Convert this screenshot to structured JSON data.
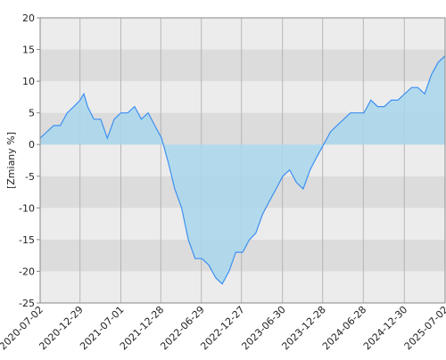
{
  "chart_data": {
    "type": "area",
    "y_label": "[Zmiany %]",
    "x": [
      "2020-07-02",
      "2020-08-01",
      "2020-09-01",
      "2020-10-01",
      "2020-11-01",
      "2020-12-01",
      "2020-12-29",
      "2021-01-15",
      "2021-02-01",
      "2021-03-01",
      "2021-04-01",
      "2021-05-01",
      "2021-06-01",
      "2021-07-01",
      "2021-08-01",
      "2021-09-01",
      "2021-10-01",
      "2021-11-01",
      "2021-12-01",
      "2022-01-01",
      "2022-02-01",
      "2022-03-01",
      "2022-04-01",
      "2022-05-01",
      "2022-06-01",
      "2022-07-01",
      "2022-08-01",
      "2022-09-01",
      "2022-10-01",
      "2022-11-01",
      "2022-12-01",
      "2023-01-01",
      "2023-02-01",
      "2023-03-01",
      "2023-04-01",
      "2023-05-01",
      "2023-06-01",
      "2023-07-01",
      "2023-08-01",
      "2023-09-01",
      "2023-10-01",
      "2023-11-01",
      "2023-12-01",
      "2024-01-01",
      "2024-02-01",
      "2024-03-01",
      "2024-04-01",
      "2024-05-01",
      "2024-06-01",
      "2024-07-01",
      "2024-08-01",
      "2024-09-01",
      "2024-10-01",
      "2024-11-01",
      "2024-12-01",
      "2025-01-01",
      "2025-02-01",
      "2025-03-01",
      "2025-04-01",
      "2025-05-01",
      "2025-06-01",
      "2025-07-02"
    ],
    "values": [
      1,
      2,
      3,
      3,
      5,
      6,
      7,
      8,
      6,
      4,
      4,
      1,
      4,
      5,
      5,
      6,
      4,
      5,
      3,
      1,
      -3,
      -7,
      -10,
      -15,
      -18,
      -18,
      -19,
      -21,
      -22,
      -20,
      -17,
      -17,
      -15,
      -14,
      -11,
      -9,
      -7,
      -5,
      -4,
      -6,
      -7,
      -4,
      -2,
      0,
      2,
      3,
      4,
      5,
      5,
      5,
      7,
      6,
      6,
      7,
      7,
      8,
      9,
      9,
      8,
      11,
      13,
      14
    ],
    "line_color": "#3d8ff0",
    "fill_color": "#a9d7ec",
    "xlim": [
      "2020-07-02",
      "2025-07-02"
    ],
    "xticks": [
      "2020-07-02",
      "2020-12-29",
      "2021-07-01",
      "2021-12-28",
      "2022-06-29",
      "2022-12-27",
      "2023-06-30",
      "2023-12-28",
      "2024-06-28",
      "2024-12-30",
      "2025-07-02"
    ],
    "ylim": [
      -25,
      20
    ],
    "yticks": [
      -25,
      -20,
      -15,
      -10,
      -5,
      0,
      5,
      10,
      15,
      20
    ],
    "grid": true
  }
}
